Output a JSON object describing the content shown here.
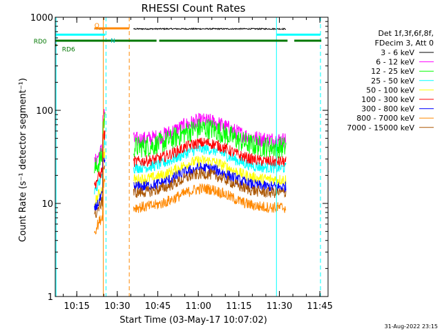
{
  "chart_data": {
    "type": "line",
    "title": "RHESSI Count Rates",
    "xlabel": "Start Time (03-May-17 10:07:02)",
    "ylabel": "Count Rate (s⁻¹ detector segment⁻¹)",
    "y_scale": "log",
    "ylim": [
      1,
      1000
    ],
    "xlim_minutes": [
      0,
      101
    ],
    "y_ticks": [
      {
        "value": 1,
        "label": "1"
      },
      {
        "value": 10,
        "label": "10"
      },
      {
        "value": 100,
        "label": "100"
      },
      {
        "value": 1000,
        "label": "1000"
      }
    ],
    "x_ticks": [
      {
        "t": 7.97,
        "label": "10:15"
      },
      {
        "t": 22.97,
        "label": "10:30"
      },
      {
        "t": 37.97,
        "label": "10:45"
      },
      {
        "t": 52.97,
        "label": "11:00"
      },
      {
        "t": 67.97,
        "label": "11:15"
      },
      {
        "t": 82.97,
        "label": "11:30"
      },
      {
        "t": 97.97,
        "label": "11:45"
      }
    ],
    "legend_header": [
      "Det 1f,3f,6f,8f,",
      "FDecim 3, Att 0"
    ],
    "series": [
      {
        "name": "3 - 6 keV",
        "color": "#000000",
        "base": 750
      },
      {
        "name": "6 - 12 keV",
        "color": "#ff00ff",
        "base": 48
      },
      {
        "name": "12 - 25 keV",
        "color": "#00ff00",
        "base": 40
      },
      {
        "name": "25 - 50 keV",
        "color": "#00ffff",
        "base": 24
      },
      {
        "name": "50 - 100 keV",
        "color": "#ffff00",
        "base": 18
      },
      {
        "name": "100 - 300 keV",
        "color": "#ff0000",
        "base": 28
      },
      {
        "name": "300 - 800 keV",
        "color": "#0000ff",
        "base": 15
      },
      {
        "name": "800 - 7000 keV",
        "color": "#ff8800",
        "base": 9
      },
      {
        "name": "7000 - 15000 keV",
        "color": "#aa5500",
        "base": 13
      }
    ],
    "data_segments": [
      {
        "start": 14.5,
        "end": 18.5
      },
      {
        "start": 29.0,
        "end": 85.5
      }
    ],
    "event_peak_minute": 55,
    "event_peak_factor": 1.6,
    "vlines": [
      {
        "t": 0.3,
        "color": "#00ffff",
        "style": "solid"
      },
      {
        "t": 17.8,
        "color": "#ff8800",
        "style": "solid"
      },
      {
        "t": 18.8,
        "color": "#00ffff",
        "style": "dashed"
      },
      {
        "t": 27.4,
        "color": "#ff8800",
        "style": "dashed"
      },
      {
        "t": 81.9,
        "color": "#00ffff",
        "style": "solid"
      },
      {
        "t": 98.2,
        "color": "#00ffff",
        "style": "dashed"
      }
    ],
    "flag_bars": [
      {
        "label": "",
        "color": "#00ffff",
        "segments": [
          [
            0,
            18.5
          ],
          [
            82,
            98.2
          ]
        ],
        "y": 650
      },
      {
        "label": "RD0",
        "color": "#007700",
        "segments": [
          [
            0,
            37.5
          ],
          [
            38.5,
            43
          ],
          [
            42.5,
            86
          ],
          [
            88.5,
            98.5
          ]
        ],
        "y": 560
      },
      {
        "label": "RD6",
        "color": "#007700",
        "segments": [
          [
            0,
            0.5
          ]
        ],
        "y": 500
      },
      {
        "label": "N",
        "color": "#ff8800",
        "segments": [
          [
            14.5,
            18.5
          ],
          [
            18.5,
            27.4
          ]
        ],
        "y": 760
      }
    ],
    "annotations": [
      {
        "text": "RD0",
        "t": -8,
        "y": 560,
        "color": "#007700"
      },
      {
        "text": "RD6",
        "t": 2.5,
        "y": 460,
        "color": "#007700"
      },
      {
        "text": "N",
        "t": 20.5,
        "y": 570,
        "color": "#00bfbf"
      },
      {
        "text": "Q",
        "t": 14.5,
        "y": 830,
        "color": "#ff8800"
      }
    ]
  },
  "footer": {
    "timestamp": "31-Aug-2022 23:15"
  }
}
